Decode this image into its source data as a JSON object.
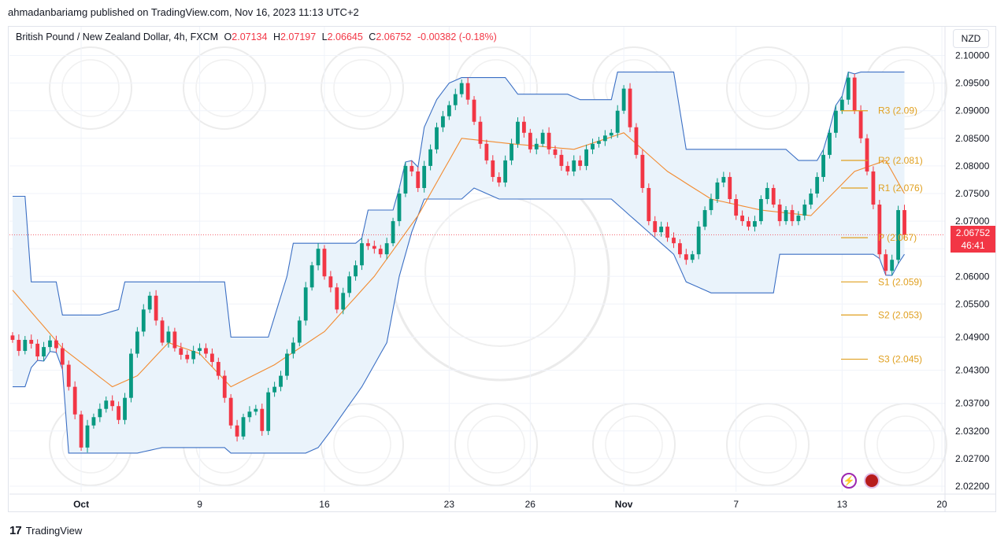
{
  "header": {
    "text": "ahmadanbariamg published on TradingView.com, Nov 16, 2023 11:13 UTC+2"
  },
  "legend": {
    "symbol": "British Pound / New Zealand Dollar, 4h, FXCM",
    "open_label": "O",
    "open": "2.07134",
    "high_label": "H",
    "high": "2.07197",
    "low_label": "L",
    "low": "2.06645",
    "close_label": "C",
    "close": "2.06752",
    "change": "-0.00382 (-0.18%)"
  },
  "currency_button": "NZD",
  "price_tag": {
    "price": "2.06752",
    "countdown": "46:41"
  },
  "footer": {
    "logo": "17",
    "brand": "TradingView"
  },
  "icons": {
    "alert": "lightning-icon",
    "flag": "uk-flag-icon"
  },
  "colors": {
    "up": "#089981",
    "down": "#f23645",
    "band": "#3b6fc4",
    "band_fill": "#eaf3fb",
    "basis": "#f28b30",
    "pivot": "#e0a020"
  },
  "chart_data": {
    "type": "candlestick",
    "title": "British Pound / New Zealand Dollar, 4h, FXCM",
    "y_ticks": [
      "2.10000",
      "2.09500",
      "2.09000",
      "2.08500",
      "2.08000",
      "2.07500",
      "2.07000",
      "2.06500",
      "2.06000",
      "2.05500",
      "2.04900",
      "2.04300",
      "2.03700",
      "2.03200",
      "2.02700",
      "2.02200"
    ],
    "ylim": [
      2.021,
      2.1015
    ],
    "x_labels": [
      {
        "label": "Oct",
        "idx": 11,
        "bold": true
      },
      {
        "label": "9",
        "idx": 30
      },
      {
        "label": "16",
        "idx": 50
      },
      {
        "label": "23",
        "idx": 70
      },
      {
        "label": "26",
        "idx": 83
      },
      {
        "label": "Nov",
        "idx": 98,
        "bold": true
      },
      {
        "label": "7",
        "idx": 116
      },
      {
        "label": "13",
        "idx": 133
      },
      {
        "label": "20",
        "idx": 149
      }
    ],
    "closes": [
      2.0485,
      2.0465,
      2.0485,
      2.0478,
      2.0455,
      2.0472,
      2.0484,
      2.047,
      2.044,
      2.04,
      2.035,
      2.029,
      2.033,
      2.0345,
      2.036,
      2.0375,
      2.0365,
      2.034,
      2.038,
      2.046,
      2.05,
      2.054,
      2.0565,
      2.052,
      2.048,
      2.05,
      2.047,
      2.0458,
      2.045,
      2.0465,
      2.047,
      2.046,
      2.0445,
      2.042,
      2.038,
      2.033,
      2.031,
      2.0345,
      2.0355,
      2.036,
      2.032,
      2.039,
      2.04,
      2.042,
      2.046,
      2.048,
      2.052,
      2.058,
      2.062,
      2.065,
      2.06,
      2.058,
      2.054,
      2.057,
      2.06,
      2.062,
      2.066,
      2.0655,
      2.065,
      2.064,
      2.066,
      2.07,
      2.075,
      2.08,
      2.079,
      2.076,
      2.08,
      2.083,
      2.087,
      2.089,
      2.091,
      2.093,
      2.095,
      2.092,
      2.088,
      2.084,
      2.081,
      2.078,
      2.077,
      2.081,
      2.084,
      2.088,
      2.086,
      2.083,
      2.084,
      2.086,
      2.083,
      2.082,
      2.08,
      2.079,
      2.081,
      2.08,
      2.083,
      2.084,
      2.0845,
      2.0855,
      2.086,
      2.09,
      2.094,
      2.087,
      2.082,
      2.076,
      2.07,
      2.068,
      2.069,
      2.067,
      2.066,
      2.064,
      2.063,
      2.064,
      2.069,
      2.072,
      2.074,
      2.077,
      2.078,
      2.074,
      2.071,
      2.07,
      2.069,
      2.07,
      2.074,
      2.076,
      2.073,
      2.07,
      2.072,
      2.07,
      2.071,
      2.073,
      2.075,
      2.078,
      2.082,
      2.086,
      2.09,
      2.092,
      2.096,
      2.09,
      2.085,
      2.079,
      2.073,
      2.064,
      2.061,
      2.063,
      2.072,
      2.0675
    ],
    "basis_anchors": [
      [
        0,
        2.0575
      ],
      [
        8,
        2.047
      ],
      [
        16,
        2.04
      ],
      [
        20,
        2.042
      ],
      [
        25,
        2.048
      ],
      [
        30,
        2.046
      ],
      [
        35,
        2.04
      ],
      [
        42,
        2.044
      ],
      [
        50,
        2.05
      ],
      [
        58,
        2.06
      ],
      [
        65,
        2.071
      ],
      [
        72,
        2.085
      ],
      [
        80,
        2.084
      ],
      [
        90,
        2.083
      ],
      [
        98,
        2.086
      ],
      [
        105,
        2.079
      ],
      [
        112,
        2.074
      ],
      [
        120,
        2.072
      ],
      [
        128,
        2.071
      ],
      [
        135,
        2.079
      ],
      [
        140,
        2.081
      ],
      [
        146,
        2.069
      ]
    ],
    "upper_anchors": [
      [
        0,
        2.0745
      ],
      [
        2,
        2.0745
      ],
      [
        3,
        2.059
      ],
      [
        7,
        2.059
      ],
      [
        8,
        2.053
      ],
      [
        14,
        2.053
      ],
      [
        17,
        2.054
      ],
      [
        18,
        2.059
      ],
      [
        34,
        2.059
      ],
      [
        35,
        2.049
      ],
      [
        41,
        2.049
      ],
      [
        44,
        2.06
      ],
      [
        45,
        2.066
      ],
      [
        56,
        2.066
      ],
      [
        57,
        2.072
      ],
      [
        64,
        2.072
      ],
      [
        66,
        2.087
      ],
      [
        68,
        2.092
      ],
      [
        70,
        2.095
      ],
      [
        72,
        2.096
      ],
      [
        79,
        2.096
      ],
      [
        81,
        2.093
      ],
      [
        89,
        2.093
      ],
      [
        91,
        2.092
      ],
      [
        96,
        2.092
      ],
      [
        97,
        2.097
      ],
      [
        106,
        2.097
      ],
      [
        108,
        2.083
      ],
      [
        124,
        2.083
      ],
      [
        126,
        2.081
      ],
      [
        131,
        2.081
      ],
      [
        133,
        2.087
      ],
      [
        136,
        2.097
      ],
      [
        146,
        2.097
      ]
    ],
    "lower_anchors": [
      [
        0,
        2.04
      ],
      [
        2,
        2.04
      ],
      [
        4,
        2.047
      ],
      [
        8,
        2.047
      ],
      [
        9,
        2.028
      ],
      [
        20,
        2.028
      ],
      [
        24,
        2.029
      ],
      [
        27,
        2.029
      ],
      [
        30,
        2.029
      ],
      [
        34,
        2.029
      ],
      [
        35,
        2.028
      ],
      [
        47,
        2.028
      ],
      [
        49,
        2.029
      ],
      [
        51,
        2.032
      ],
      [
        56,
        2.04
      ],
      [
        60,
        2.048
      ],
      [
        62,
        2.06
      ],
      [
        64,
        2.068
      ],
      [
        66,
        2.074
      ],
      [
        72,
        2.074
      ],
      [
        74,
        2.076
      ],
      [
        78,
        2.074
      ],
      [
        96,
        2.074
      ],
      [
        102,
        2.068
      ],
      [
        106,
        2.064
      ],
      [
        108,
        2.059
      ],
      [
        112,
        2.057
      ],
      [
        122,
        2.057
      ],
      [
        123,
        2.064
      ],
      [
        146,
        2.064
      ]
    ],
    "pivots": [
      {
        "label": "R3",
        "value": 2.09,
        "text": "R3 (2.09)"
      },
      {
        "label": "R2",
        "value": 2.081,
        "text": "R2 (2.081)"
      },
      {
        "label": "R1",
        "value": 2.076,
        "text": "R1 (2.076)"
      },
      {
        "label": "P",
        "value": 2.067,
        "text": "P (2.067)"
      },
      {
        "label": "S1",
        "value": 2.059,
        "text": "S1 (2.059)"
      },
      {
        "label": "S2",
        "value": 2.053,
        "text": "S2 (2.053)"
      },
      {
        "label": "S3",
        "value": 2.045,
        "text": "S3 (2.045)"
      }
    ]
  }
}
